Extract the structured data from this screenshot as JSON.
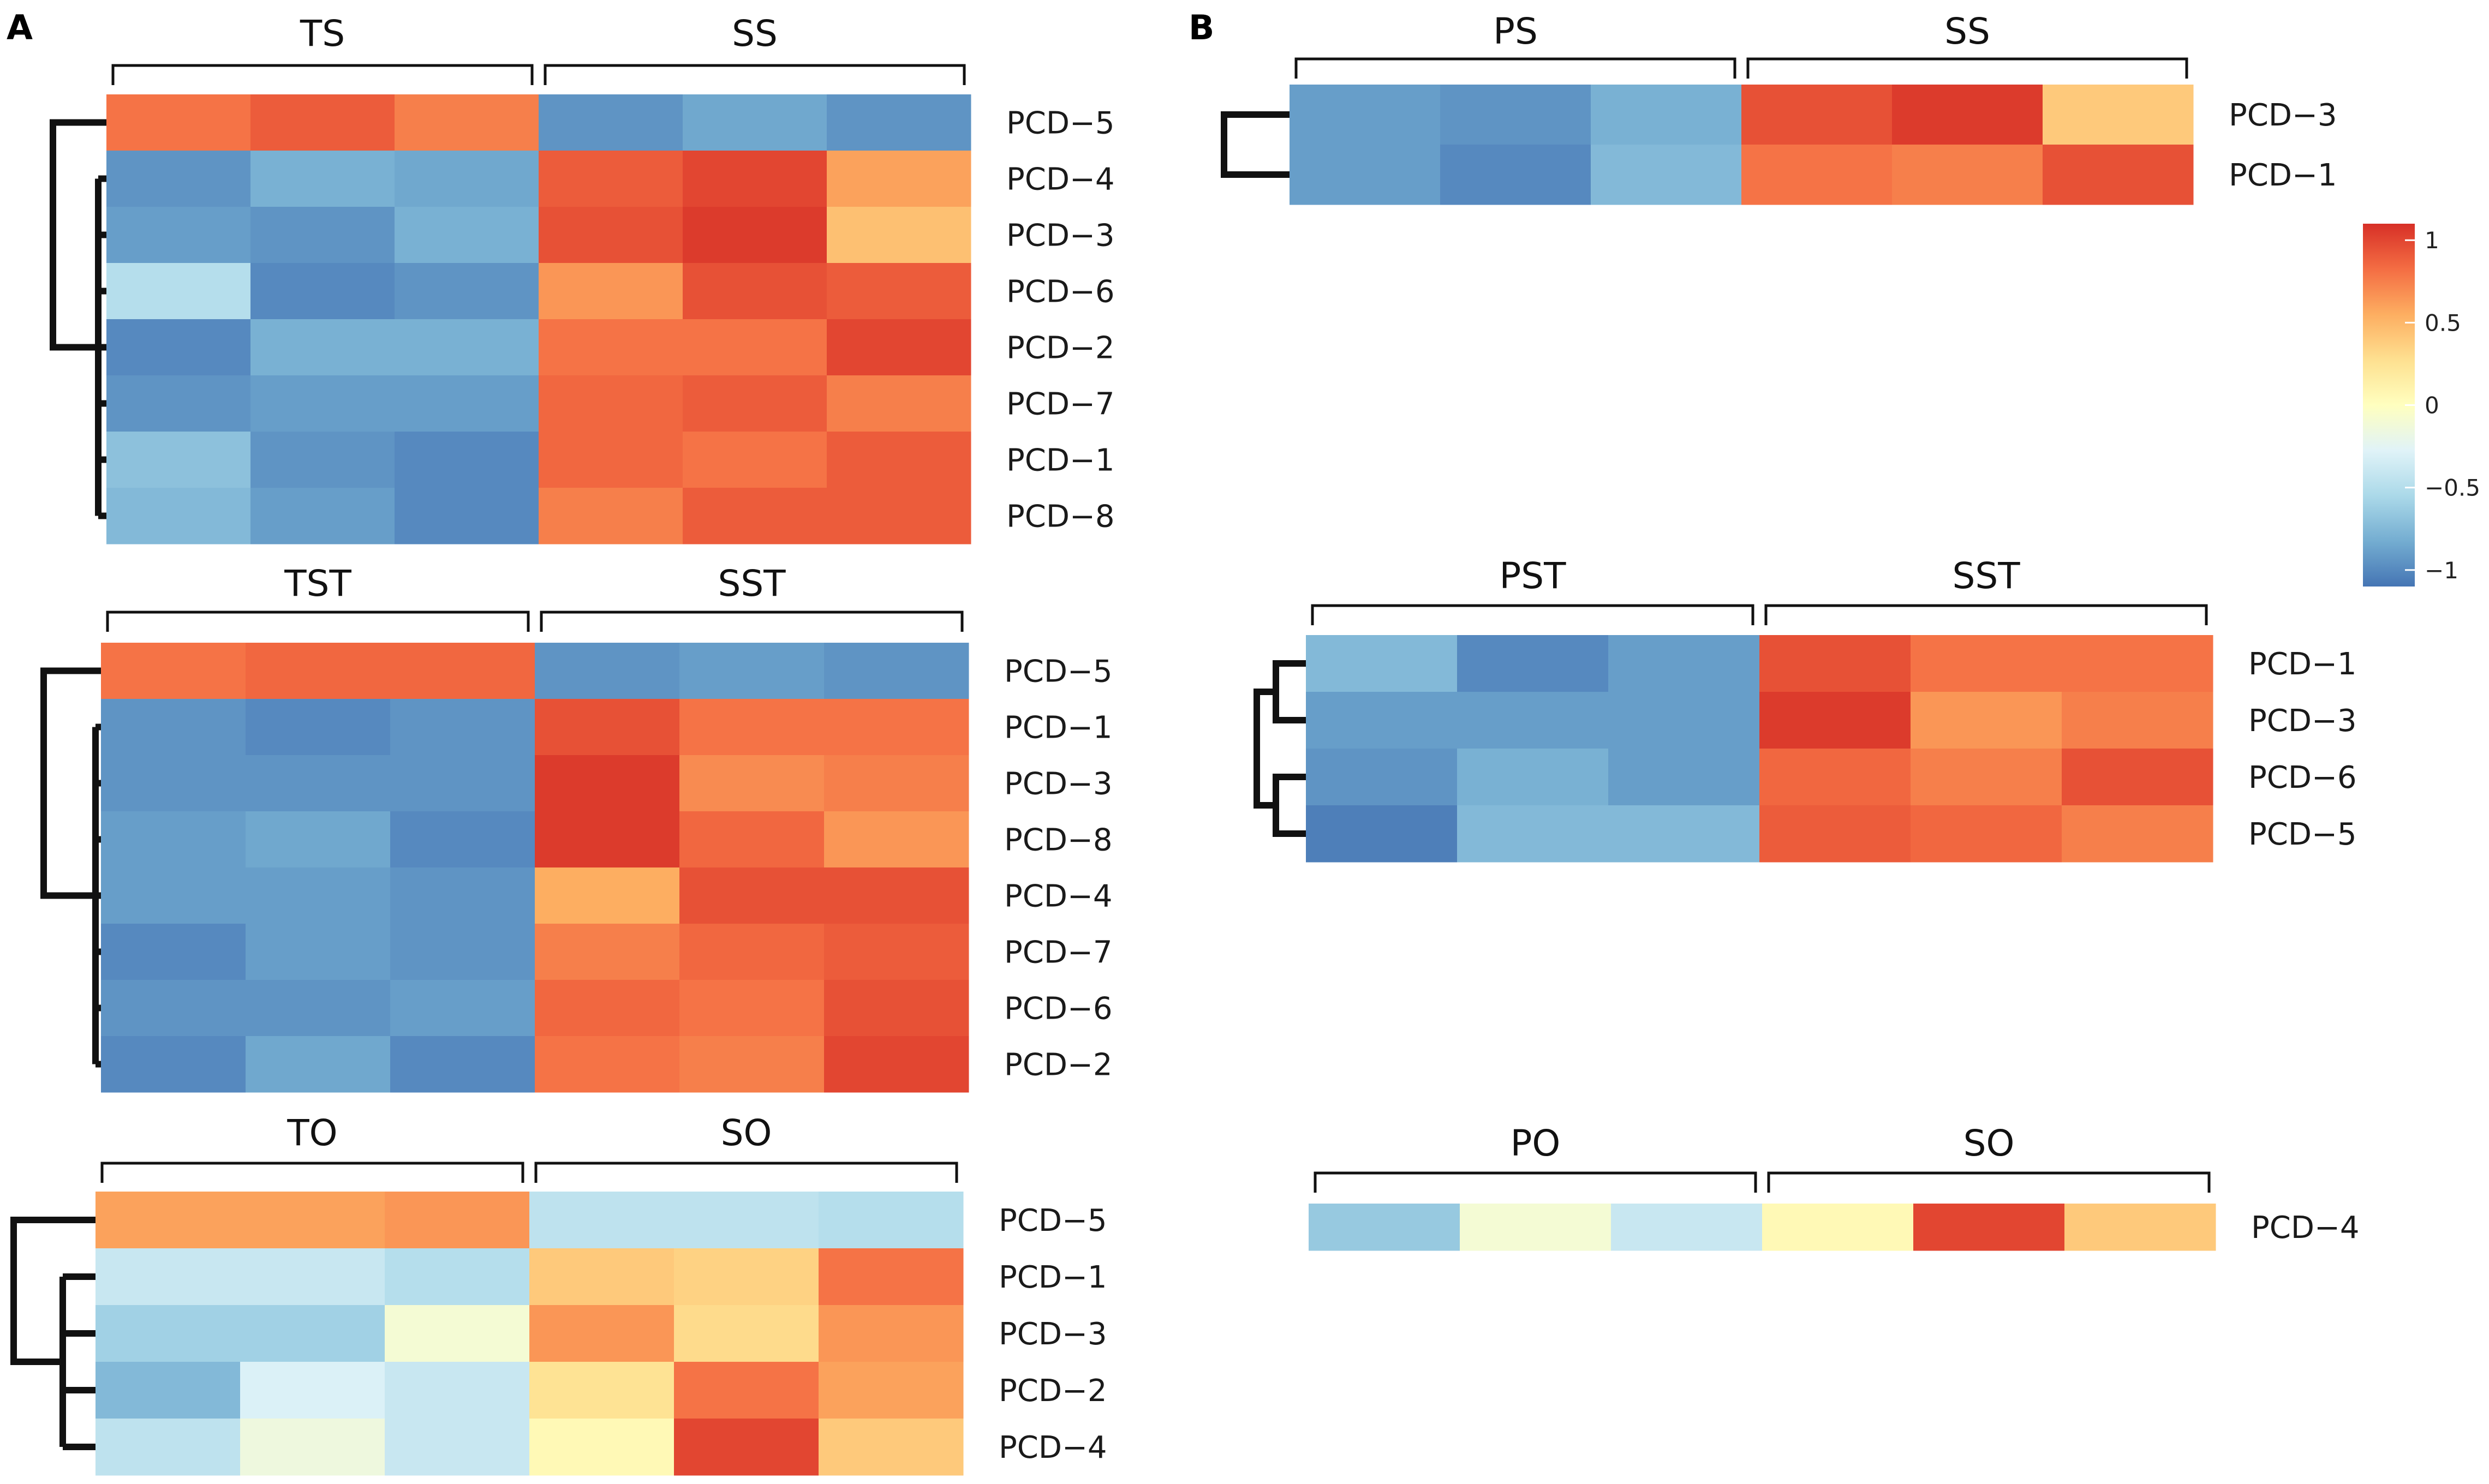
{
  "figure": {
    "panels": [
      {
        "id": "A",
        "label": "A"
      },
      {
        "id": "B",
        "label": "B"
      }
    ]
  },
  "colorbar": {
    "ticks": [
      {
        "label": "1",
        "value": 1
      },
      {
        "label": "0.5",
        "value": 0.5
      },
      {
        "label": "0",
        "value": 0
      },
      {
        "label": "−0.5",
        "value": -0.5
      },
      {
        "label": "−1",
        "value": -1
      }
    ],
    "range": [
      -1.1,
      1.1
    ],
    "colors": [
      "#4575b4",
      "#74add1",
      "#abd9e9",
      "#e0f3f8",
      "#ffffbf",
      "#fee090",
      "#fdae61",
      "#f46d43",
      "#d73027"
    ]
  },
  "chart_data": [
    {
      "type": "heatmap",
      "panel": "A",
      "groups": [
        {
          "label": "TS"
        },
        {
          "label": "SS"
        }
      ],
      "rows": [
        "PCD−5",
        "PCD−4",
        "PCD−3",
        "PCD−6",
        "PCD−2",
        "PCD−7",
        "PCD−1",
        "PCD−8"
      ],
      "values": [
        [
          0.8,
          0.9,
          0.75,
          -0.95,
          -0.85,
          -0.95
        ],
        [
          -0.95,
          -0.8,
          -0.85,
          0.9,
          1.0,
          0.6
        ],
        [
          -0.9,
          -0.95,
          -0.8,
          0.95,
          1.05,
          0.45
        ],
        [
          -0.5,
          -1.0,
          -0.95,
          0.65,
          0.95,
          0.9
        ],
        [
          -1.0,
          -0.8,
          -0.8,
          0.8,
          0.8,
          1.0
        ],
        [
          -0.95,
          -0.9,
          -0.9,
          0.85,
          0.9,
          0.75
        ],
        [
          -0.7,
          -0.95,
          -1.0,
          0.85,
          0.8,
          0.9
        ],
        [
          -0.75,
          -0.9,
          -1.0,
          0.75,
          0.9,
          0.9
        ]
      ]
    },
    {
      "type": "heatmap",
      "panel": "A",
      "groups": [
        {
          "label": "TST"
        },
        {
          "label": "SST"
        }
      ],
      "rows": [
        "PCD−5",
        "PCD−1",
        "PCD−3",
        "PCD−8",
        "PCD−4",
        "PCD−7",
        "PCD−6",
        "PCD−2"
      ],
      "values": [
        [
          0.8,
          0.85,
          0.85,
          -0.95,
          -0.9,
          -0.95
        ],
        [
          -0.95,
          -1.0,
          -0.95,
          0.95,
          0.8,
          0.8
        ],
        [
          -0.95,
          -0.95,
          -0.95,
          1.05,
          0.7,
          0.75
        ],
        [
          -0.9,
          -0.85,
          -1.0,
          1.05,
          0.85,
          0.65
        ],
        [
          -0.9,
          -0.9,
          -0.95,
          0.55,
          0.95,
          0.95
        ],
        [
          -1.0,
          -0.9,
          -0.95,
          0.75,
          0.85,
          0.9
        ],
        [
          -0.95,
          -0.95,
          -0.9,
          0.85,
          0.8,
          0.95
        ],
        [
          -1.0,
          -0.85,
          -1.0,
          0.8,
          0.75,
          1.0
        ]
      ]
    },
    {
      "type": "heatmap",
      "panel": "A",
      "groups": [
        {
          "label": "TO"
        },
        {
          "label": "SO"
        }
      ],
      "rows": [
        "PCD−5",
        "PCD−1",
        "PCD−3",
        "PCD−2",
        "PCD−4"
      ],
      "values": [
        [
          0.6,
          0.6,
          0.65,
          -0.45,
          -0.45,
          -0.5
        ],
        [
          -0.4,
          -0.4,
          -0.5,
          0.4,
          0.35,
          0.8
        ],
        [
          -0.6,
          -0.6,
          -0.1,
          0.65,
          0.3,
          0.65
        ],
        [
          -0.75,
          -0.3,
          -0.4,
          0.25,
          0.8,
          0.6
        ],
        [
          -0.45,
          -0.15,
          -0.4,
          0.05,
          1.0,
          0.4
        ]
      ]
    },
    {
      "type": "heatmap",
      "panel": "B",
      "groups": [
        {
          "label": "PS"
        },
        {
          "label": "SS"
        }
      ],
      "rows": [
        "PCD−3",
        "PCD−1"
      ],
      "values": [
        [
          -0.9,
          -0.95,
          -0.8,
          0.95,
          1.05,
          0.4
        ],
        [
          -0.9,
          -1.0,
          -0.75,
          0.8,
          0.75,
          0.95
        ]
      ]
    },
    {
      "type": "heatmap",
      "panel": "B",
      "groups": [
        {
          "label": "PST"
        },
        {
          "label": "SST"
        }
      ],
      "rows": [
        "PCD−1",
        "PCD−3",
        "PCD−6",
        "PCD−5"
      ],
      "values": [
        [
          -0.75,
          -1.0,
          -0.9,
          0.95,
          0.8,
          0.8
        ],
        [
          -0.9,
          -0.9,
          -0.9,
          1.05,
          0.65,
          0.75
        ],
        [
          -0.95,
          -0.8,
          -0.9,
          0.85,
          0.75,
          0.95
        ],
        [
          -1.05,
          -0.75,
          -0.75,
          0.9,
          0.85,
          0.75
        ]
      ]
    },
    {
      "type": "heatmap",
      "panel": "B",
      "groups": [
        {
          "label": "PO"
        },
        {
          "label": "SO"
        }
      ],
      "rows": [
        "PCD−4"
      ],
      "values": [
        [
          -0.65,
          -0.1,
          -0.4,
          0.05,
          1.0,
          0.4
        ]
      ]
    }
  ]
}
